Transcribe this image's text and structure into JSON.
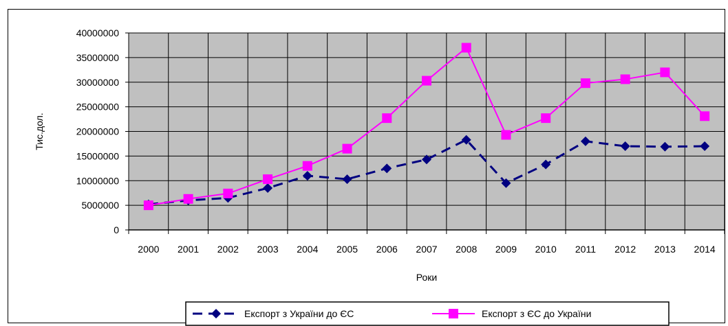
{
  "chart_data": {
    "type": "line",
    "title": "",
    "xlabel": "Роки",
    "ylabel": "Тис.дол.",
    "categories": [
      "2000",
      "2001",
      "2002",
      "2003",
      "2004",
      "2005",
      "2006",
      "2007",
      "2008",
      "2009",
      "2010",
      "2011",
      "2012",
      "2013",
      "2014"
    ],
    "y_ticks": [
      "0",
      "5000000",
      "10000000",
      "15000000",
      "20000000",
      "25000000",
      "30000000",
      "35000000",
      "40000000"
    ],
    "ylim": [
      0,
      40000000
    ],
    "grid": true,
    "plot_background": "#c0c0c0",
    "legend_position": "bottom",
    "series": [
      {
        "name": "Експорт з України до ЄС",
        "color": "#000080",
        "line_style": "dashed",
        "marker": "diamond",
        "values": [
          5200000,
          6000000,
          6500000,
          8500000,
          11000000,
          10300000,
          12500000,
          14300000,
          18300000,
          9500000,
          13300000,
          18000000,
          17000000,
          16900000,
          17000000
        ]
      },
      {
        "name": "Експорт з ЄС до України",
        "color": "#ff00ff",
        "line_style": "solid",
        "marker": "square",
        "values": [
          5000000,
          6300000,
          7400000,
          10300000,
          13000000,
          16500000,
          22700000,
          30300000,
          37000000,
          19300000,
          22700000,
          29800000,
          30600000,
          32000000,
          23100000
        ]
      }
    ]
  }
}
